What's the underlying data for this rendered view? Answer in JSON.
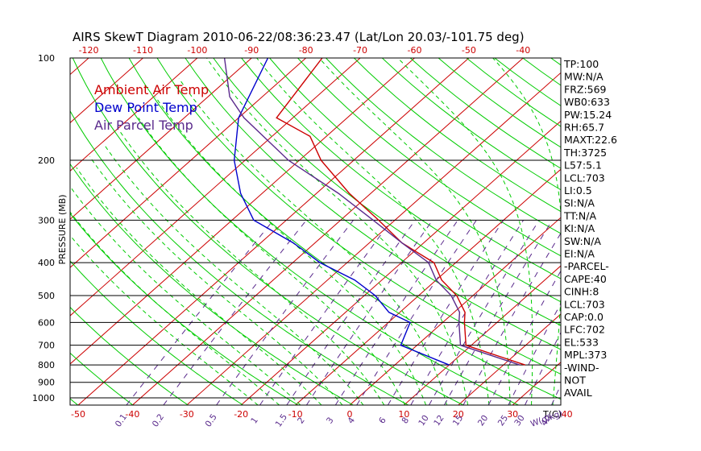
{
  "chart_data": {
    "type": "line",
    "title": "AIRS SkewT Diagram 2010-06-22/08:36:23.47 (Lat/Lon 20.03/-101.75 deg)",
    "ylabel": "PRESSURE (MB)",
    "xlabel": "T(C)",
    "mixing_ratio_label": "W(g/kg)",
    "p_range": [
      100,
      1050
    ],
    "t_range_bottom": [
      -50,
      40
    ],
    "top_ticks": [
      "-120",
      "-110",
      "-100",
      "-90",
      "-80",
      "-70",
      "-60",
      "-50",
      "-40"
    ],
    "top_tick_values": [
      -120,
      -110,
      -100,
      -90,
      -80,
      -70,
      -60,
      -50,
      -40
    ],
    "bottom_ticks": [
      "-50",
      "-40",
      "-30",
      "-20",
      "-10",
      "0",
      "10",
      "20",
      "30",
      "40"
    ],
    "bottom_tick_values": [
      -50,
      -40,
      -30,
      -20,
      -10,
      0,
      10,
      20,
      30,
      40
    ],
    "pressure_ticks": [
      "100",
      "200",
      "300",
      "400",
      "500",
      "600",
      "700",
      "800",
      "900",
      "1000"
    ],
    "pressure_tick_values": [
      100,
      200,
      300,
      400,
      500,
      600,
      700,
      800,
      900,
      1000
    ],
    "mixing_ratio_labels": [
      "0.1",
      "0.2",
      "0.5",
      "1",
      "1.5",
      "2",
      "3",
      "4",
      "6",
      "8",
      "10",
      "12",
      "15",
      "20",
      "25",
      "30",
      "40"
    ],
    "mixing_ratio_values": [
      0.1,
      0.2,
      0.5,
      1,
      1.5,
      2,
      3,
      4,
      6,
      8,
      10,
      12,
      15,
      20,
      25,
      30,
      40
    ],
    "legend": [
      {
        "label": "Ambient Air Temp",
        "color": "#cc0000"
      },
      {
        "label": "Dew Point Temp",
        "color": "#0000cc"
      },
      {
        "label": "Air Parcel Temp",
        "color": "#5a2a8c"
      }
    ],
    "series": [
      {
        "name": "Ambient Air Temp",
        "color": "#cc0000",
        "points": [
          [
            100,
            -77
          ],
          [
            150,
            -73
          ],
          [
            170,
            -63
          ],
          [
            200,
            -56
          ],
          [
            250,
            -44
          ],
          [
            300,
            -33
          ],
          [
            350,
            -24
          ],
          [
            400,
            -14
          ],
          [
            450,
            -9
          ],
          [
            500,
            -3
          ],
          [
            560,
            2
          ],
          [
            600,
            4
          ],
          [
            700,
            9
          ],
          [
            800,
            24
          ]
        ]
      },
      {
        "name": "Dew Point Temp",
        "color": "#0000cc",
        "points": [
          [
            100,
            -87
          ],
          [
            150,
            -80
          ],
          [
            200,
            -72
          ],
          [
            250,
            -64
          ],
          [
            300,
            -56
          ],
          [
            350,
            -44
          ],
          [
            400,
            -35
          ],
          [
            450,
            -25
          ],
          [
            500,
            -18
          ],
          [
            560,
            -12
          ],
          [
            600,
            -6
          ],
          [
            700,
            -3
          ],
          [
            800,
            10
          ]
        ]
      },
      {
        "name": "Air Parcel Temp",
        "color": "#5a2a8c",
        "points": [
          [
            100,
            -95
          ],
          [
            130,
            -86
          ],
          [
            150,
            -79
          ],
          [
            200,
            -62
          ],
          [
            250,
            -46
          ],
          [
            300,
            -34
          ],
          [
            350,
            -24
          ],
          [
            400,
            -15
          ],
          [
            450,
            -10
          ],
          [
            500,
            -4
          ],
          [
            560,
            1
          ],
          [
            600,
            3
          ],
          [
            700,
            8
          ],
          [
            800,
            23
          ]
        ]
      }
    ],
    "stats": [
      "TP:100",
      "MW:N/A",
      "FRZ:569",
      "WB0:633",
      "PW:15.24",
      "RH:65.7",
      "MAXT:22.6",
      "TH:3725",
      "L57:5.1",
      "LCL:703",
      "LI:0.5",
      "SI:N/A",
      "TT:N/A",
      "KI:N/A",
      "SW:N/A",
      "EI:N/A",
      "-PARCEL-",
      "CAPE:40",
      "CINH:8",
      "LCL:703",
      "CAP:0.0",
      "LFC:702",
      "EL:533",
      "MPL:373",
      "-WIND-",
      "NOT",
      "AVAIL"
    ],
    "colors": {
      "isotherm": "#cc0000",
      "dry_adiabat": "#00cc00",
      "moist_adiabat": "#00cc00",
      "mixing_ratio": "#5a2a8c",
      "isobar": "#000000"
    }
  }
}
